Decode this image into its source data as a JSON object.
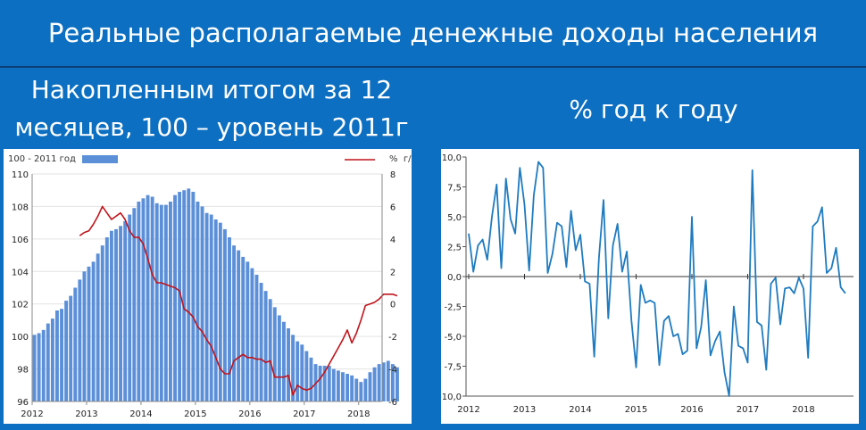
{
  "title": "Реальные располагаемые денежные доходы населения",
  "left_heading": {
    "line1": "Накопленным итогом за 12",
    "line2": "месяцев, 100 – уровень 2011г"
  },
  "right_heading": "% год к году",
  "colors": {
    "background": "#0c6fc1",
    "bar": "#5b8fd8",
    "red_line": "#c0141c",
    "blue_line": "#1f7bbf"
  },
  "chart_data": [
    {
      "type": "bar",
      "legend": {
        "bar_label": "100 - 2011 год",
        "line_label": "%  г/г",
        "placement": "top"
      },
      "x_tick_labels": [
        "2012",
        "2013",
        "2014",
        "2015",
        "2016",
        "2017",
        "2018"
      ],
      "y_left_ticks": [
        "96",
        "98",
        "100",
        "102",
        "104",
        "106",
        "108",
        "110"
      ],
      "y_left_range": [
        96,
        110
      ],
      "y_right_ticks": [
        "-6",
        "-4",
        "-2",
        "0",
        "2",
        "4",
        "6",
        "8"
      ],
      "y_right_range": [
        -6,
        8
      ],
      "x_start_year": 2012,
      "series": [
        {
          "type": "bar",
          "axis": "left",
          "values": [
            100.1,
            100.2,
            100.4,
            100.8,
            101.1,
            101.6,
            101.7,
            102.2,
            102.5,
            103.0,
            103.5,
            104.0,
            104.3,
            104.6,
            105.1,
            105.6,
            106.1,
            106.5,
            106.6,
            106.8,
            107.1,
            107.5,
            107.9,
            108.3,
            108.5,
            108.7,
            108.6,
            108.2,
            108.1,
            108.1,
            108.3,
            108.7,
            108.9,
            109.0,
            109.1,
            108.9,
            108.3,
            108.0,
            107.6,
            107.5,
            107.2,
            107.0,
            106.6,
            106.1,
            105.6,
            105.3,
            104.9,
            104.6,
            104.2,
            103.8,
            103.3,
            102.8,
            102.3,
            101.8,
            101.3,
            100.9,
            100.5,
            100.1,
            99.7,
            99.5,
            99.1,
            98.7,
            98.3,
            98.2,
            98.2,
            98.2,
            98.0,
            97.9,
            97.8,
            97.7,
            97.6,
            97.4,
            97.2,
            97.4,
            97.8,
            98.1,
            98.3,
            98.4,
            98.5,
            98.3,
            98.1
          ]
        },
        {
          "type": "line",
          "axis": "right",
          "values": [
            4.2,
            4.4,
            4.5,
            4.9,
            5.4,
            6.0,
            5.6,
            5.2,
            5.4,
            5.6,
            5.2,
            4.5,
            4.1,
            4.1,
            3.7,
            2.8,
            1.8,
            1.3,
            1.3,
            1.2,
            1.1,
            1.0,
            0.8,
            -0.3,
            -0.5,
            -0.8,
            -1.4,
            -1.7,
            -2.2,
            -2.6,
            -3.3,
            -4.0,
            -4.3,
            -4.3,
            -3.5,
            -3.3,
            -3.1,
            -3.3,
            -3.3,
            -3.4,
            -3.4,
            -3.6,
            -3.5,
            -4.5,
            -4.5,
            -4.5,
            -4.4,
            -5.6,
            -5.0,
            -5.2,
            -5.3,
            -5.2,
            -4.9,
            -4.6,
            -4.2,
            -3.7,
            -3.2,
            -2.7,
            -2.2,
            -1.6,
            -2.4,
            -1.8,
            -1.0,
            -0.1,
            0.0,
            0.1,
            0.3,
            0.6,
            0.6,
            0.6,
            0.5
          ]
        }
      ]
    },
    {
      "type": "line",
      "x_tick_labels": [
        "2012",
        "2013",
        "2014",
        "2015",
        "2016",
        "2017",
        "2018"
      ],
      "y_tick_labels": [
        "10,0",
        "7,5",
        "5,0",
        "2,5",
        "0,0",
        "-2,5",
        "-5,0",
        "-7,5",
        "-10,0"
      ],
      "y_range": [
        -10,
        10
      ],
      "x_start_year": 2012,
      "series": [
        {
          "values": [
            3.6,
            0.4,
            2.6,
            3.1,
            1.4,
            5.0,
            7.7,
            0.7,
            8.2,
            4.8,
            3.6,
            9.1,
            6.0,
            0.5,
            6.8,
            9.6,
            9.1,
            0.3,
            1.9,
            4.5,
            4.2,
            0.8,
            5.5,
            2.2,
            3.5,
            -0.4,
            -0.6,
            -6.7,
            1.5,
            6.4,
            -3.5,
            2.6,
            4.4,
            0.4,
            2.1,
            -3.7,
            -7.6,
            -0.7,
            -2.2,
            -2.0,
            -2.2,
            -7.4,
            -3.7,
            -3.3,
            -5.0,
            -4.8,
            -6.5,
            -6.2,
            5.0,
            -6.0,
            -4.2,
            -0.3,
            -6.6,
            -5.4,
            -4.6,
            -8.0,
            -10.0,
            -2.5,
            -5.8,
            -6.0,
            -7.2,
            8.9,
            -3.8,
            -4.1,
            -7.8,
            -0.6,
            -0.1,
            -4.0,
            -1.0,
            -0.9,
            -1.4,
            -0.1,
            -1.0,
            -6.8,
            4.2,
            4.6,
            5.8,
            0.3,
            0.7,
            2.4,
            -0.9,
            -1.4
          ]
        }
      ]
    }
  ]
}
